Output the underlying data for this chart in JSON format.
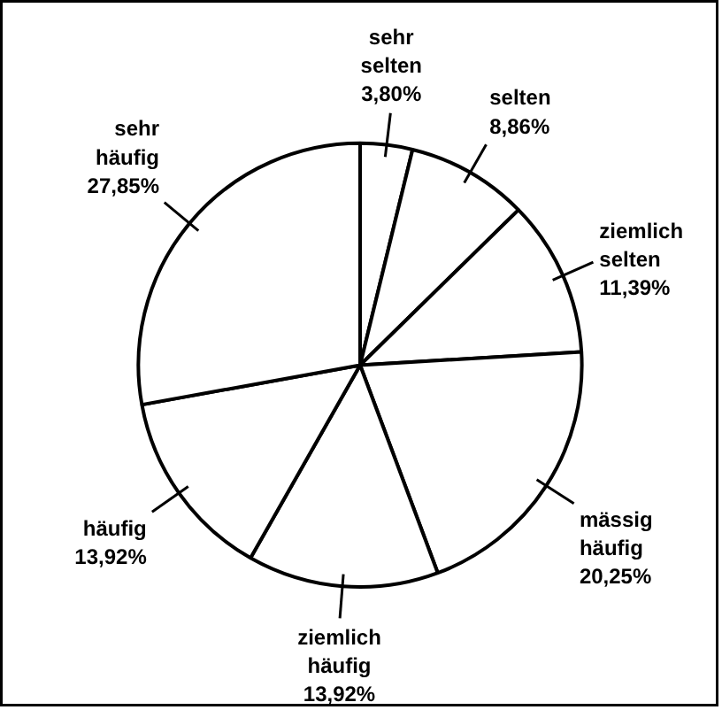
{
  "chart_data": {
    "type": "pie",
    "categories": [
      "sehr selten",
      "selten",
      "ziemlich selten",
      "mässig häufig",
      "ziemlich häufig",
      "häufig",
      "sehr häufig"
    ],
    "values": [
      3.8,
      8.86,
      11.39,
      20.25,
      13.92,
      13.92,
      27.85
    ],
    "value_labels": [
      "3,80%",
      "8,86%",
      "11,39%",
      "20,25%",
      "13,92%",
      "13,92%",
      "27,85%"
    ],
    "colors": [
      "#ffffff",
      "#ffffff",
      "#ffffff",
      "#ffffff",
      "#ffffff",
      "#ffffff",
      "#ffffff"
    ]
  }
}
